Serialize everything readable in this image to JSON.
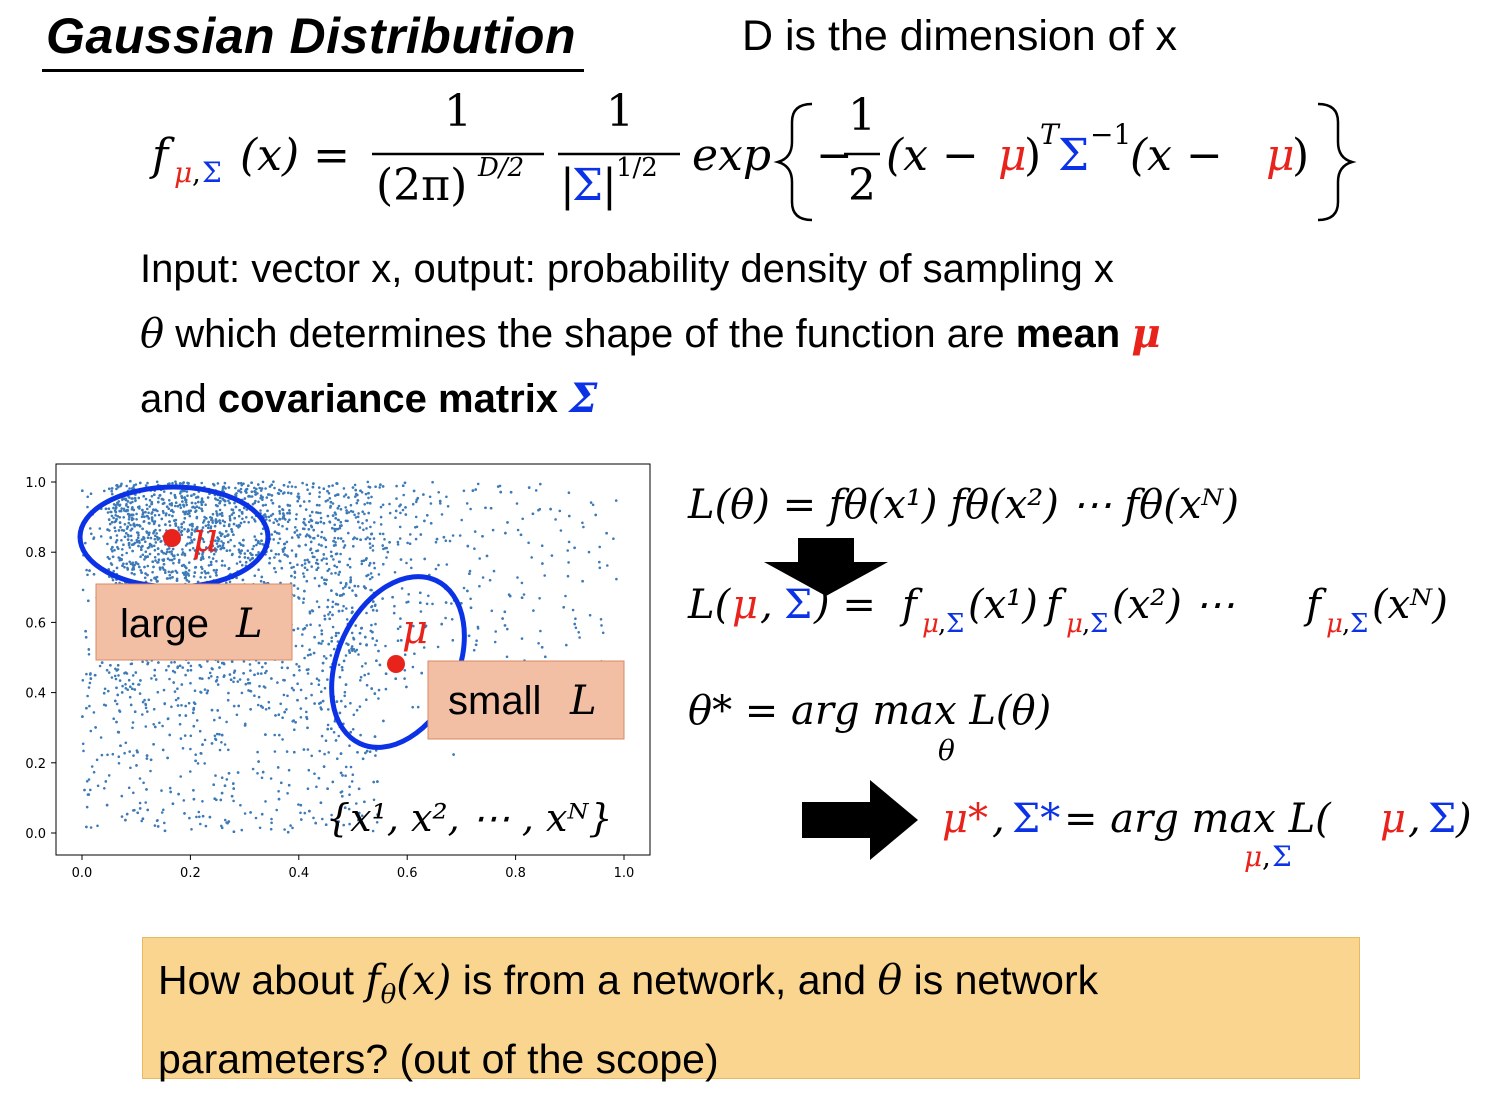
{
  "slide": {
    "title": "Gaussian Distribution",
    "dimension_note": "D is the dimension of x",
    "formula": {
      "lhs_f": "f",
      "sub_mu": "μ",
      "sub_comma": ",",
      "sub_sigma": "Σ",
      "lhs_arg": "(x) =",
      "num1": "1",
      "den1": "(2π)",
      "den1_exp": "D/2",
      "num2": "1",
      "den2_left": "|",
      "den2_sigma": "Σ",
      "den2_right": "|",
      "den2_exp": "1/2",
      "exp": "exp",
      "neg": "−",
      "half_num": "1",
      "half_den": "2",
      "open_paren": "(x − ",
      "mu": "μ",
      "close_paren": ")",
      "transpose": "T",
      "sigma": "Σ",
      "inverse": "−1",
      "open_paren2": "(x − ",
      "mu2": "μ",
      "close_paren2": ")"
    },
    "line1": "Input: vector x, output: probability density of sampling x",
    "line2_theta": "θ",
    "line2_text": " which determines the shape of the function are ",
    "line2_bold": "mean ",
    "line2_mu": "μ",
    "line3_text": "and ",
    "line3_bold": "covariance matrix ",
    "line3_sigma": "Σ",
    "plot": {
      "x_ticks": [
        "0.0",
        "0.2",
        "0.4",
        "0.6",
        "0.8",
        "1.0"
      ],
      "y_ticks": [
        "0.0",
        "0.2",
        "0.4",
        "0.6",
        "0.8",
        "1.0"
      ],
      "mu_label_1": "μ",
      "mu_label_2": "μ",
      "large_label": "large",
      "large_L": "L",
      "small_label": "small",
      "small_L": "L",
      "set_label": "{x¹, x², ⋯ , xᴺ}"
    },
    "equations": {
      "eq1": "L(θ) = fθ(x¹) fθ(x²) ⋯ fθ(xᴺ)",
      "eq2_L": "L(",
      "eq2_mu": "μ",
      "eq2_comma": ", ",
      "eq2_sigma": "Σ",
      "eq2_rest": ") = ",
      "eq2_terms": [
        "(x¹)",
        "(x²) ⋯ ",
        "(xᴺ)"
      ],
      "eq3": "θ* = arg max L(θ)",
      "eq3_sub": "θ",
      "eq4_mu": "μ*",
      "eq4_comma": ", ",
      "eq4_sigma": "Σ*",
      "eq4_mid": " = arg max L(",
      "eq4_end": ")",
      "eq4_sub_mu": "μ",
      "eq4_sub_comma": ",",
      "eq4_sub_sigma": "Σ"
    },
    "callout": {
      "text_a": "How about ",
      "f": "f",
      "theta_sub": "θ",
      "arg": "(x)",
      "text_b": " is from a network, and ",
      "theta": "θ",
      "text_c": " is network",
      "line2": "parameters? (out of the scope)"
    }
  },
  "colors": {
    "mean": "#e8231c",
    "covariance": "#0b32e6",
    "scatter": "#3d7ab8",
    "callout": "#fad590",
    "label_box": "#f2bfa4"
  }
}
